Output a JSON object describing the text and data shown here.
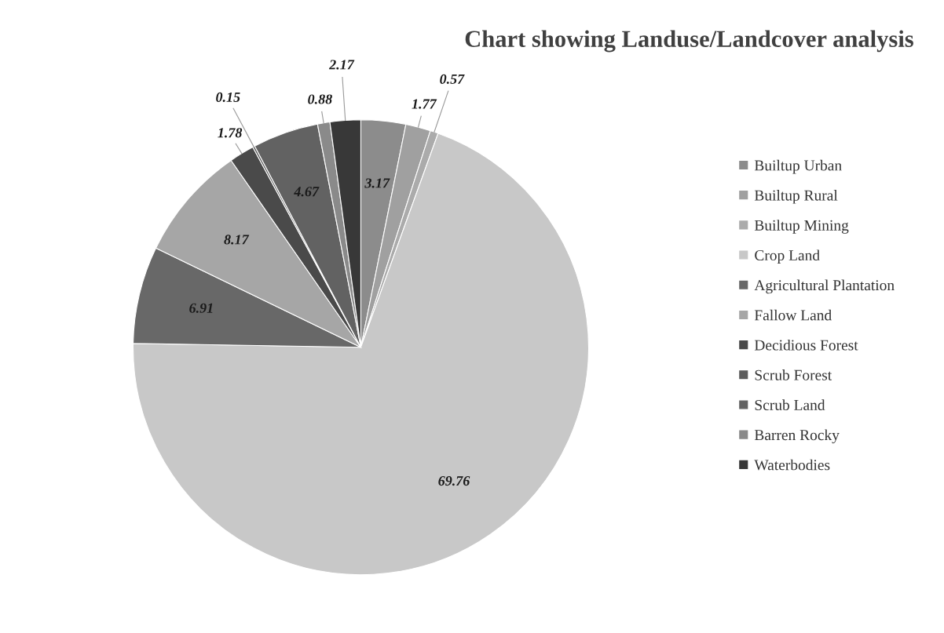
{
  "chart_data": {
    "type": "pie",
    "title": "Chart showing Landuse/Landcover analysis",
    "categories": [
      "Builtup Urban",
      "Builtup Rural",
      "Builtup Mining",
      "Crop Land",
      "Agricultural Plantation",
      "Fallow Land",
      "Decidious Forest",
      "Scrub Forest",
      "Scrub Land",
      "Barren Rocky",
      "Waterbodies"
    ],
    "values": [
      3.17,
      1.77,
      0.57,
      69.76,
      6.91,
      8.17,
      1.78,
      0.15,
      4.67,
      0.88,
      2.17
    ],
    "colors": [
      "#8c8c8c",
      "#a0a0a0",
      "#ababab",
      "#c8c8c8",
      "#686868",
      "#a6a6a6",
      "#4a4a4a",
      "#5c5c5c",
      "#626262",
      "#8a8a8a",
      "#383838"
    ],
    "data_labels": true,
    "legend": "right"
  }
}
